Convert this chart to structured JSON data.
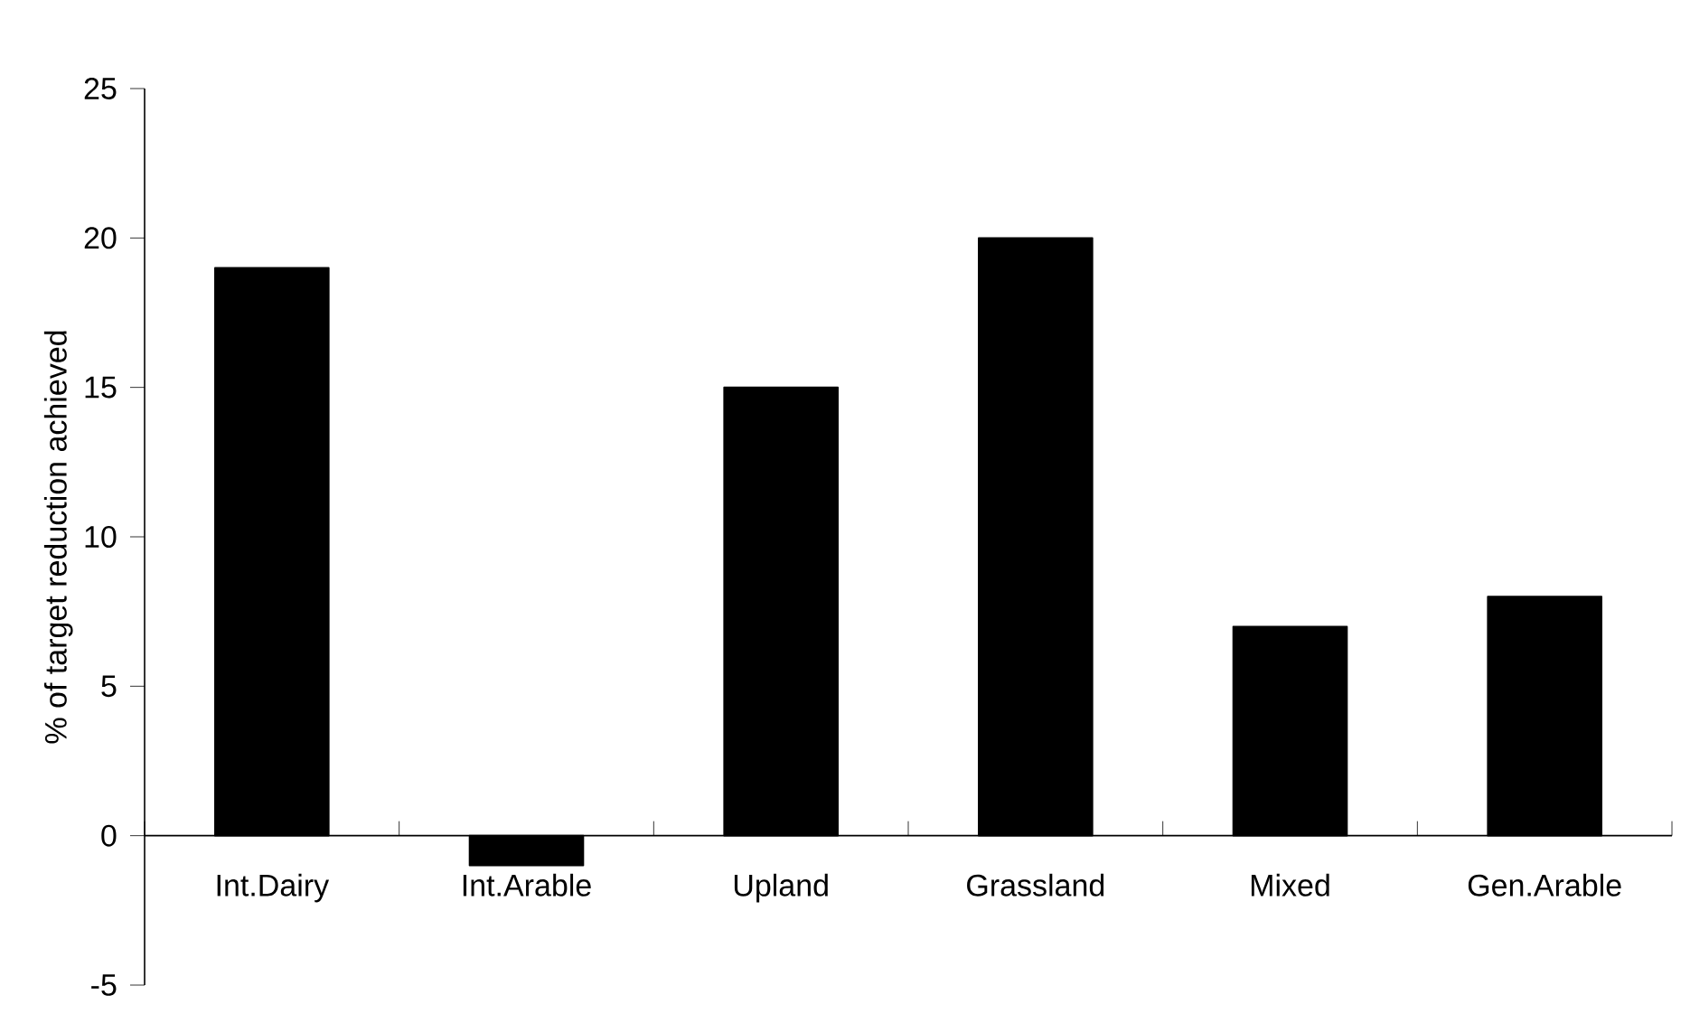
{
  "chart_data": {
    "type": "bar",
    "ylabel": "% of target reduction achieved",
    "categories": [
      "Int.Dairy",
      "Int.Arable",
      "Upland",
      "Grassland",
      "Mixed",
      "Gen.Arable"
    ],
    "values": [
      19,
      -1,
      15,
      20,
      7,
      8
    ],
    "color": "#000000",
    "ylim": [
      -5,
      25
    ],
    "yticks": [
      -5,
      0,
      5,
      10,
      15,
      20,
      25
    ]
  }
}
